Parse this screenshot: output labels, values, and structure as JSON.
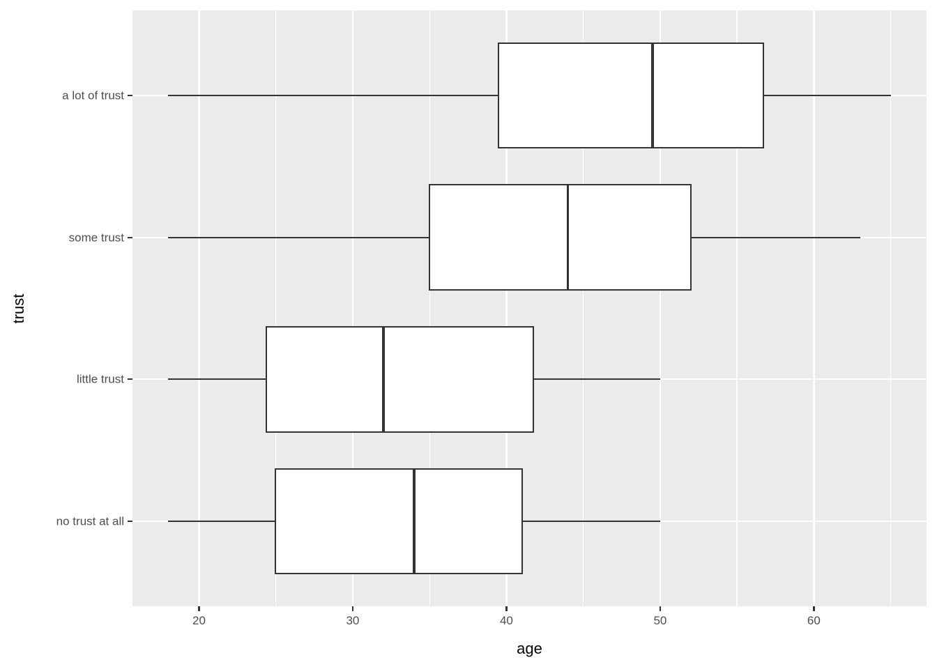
{
  "chart_data": {
    "type": "boxplot",
    "orientation": "horizontal",
    "title": "",
    "xlabel": "age",
    "ylabel": "trust",
    "x_ticks": [
      20,
      30,
      40,
      50,
      60
    ],
    "x_minor_gridlines": [
      25,
      35,
      45,
      55,
      65
    ],
    "xlim": [
      15.67,
      67.33
    ],
    "grid": true,
    "legend": false,
    "categories_top_to_bottom": [
      "a lot of trust",
      "some trust",
      "little trust",
      "no trust at all"
    ],
    "series": [
      {
        "category": "a lot of trust",
        "whisker_min": 18,
        "q1": 39.5,
        "median": 49.5,
        "q3": 56.7,
        "whisker_max": 65
      },
      {
        "category": "some trust",
        "whisker_min": 18,
        "q1": 35,
        "median": 44,
        "q3": 52,
        "whisker_max": 63
      },
      {
        "category": "little trust",
        "whisker_min": 18,
        "q1": 24.4,
        "median": 32,
        "q3": 41.75,
        "whisker_max": 50
      },
      {
        "category": "no trust at all",
        "whisker_min": 18,
        "q1": 25,
        "median": 34,
        "q3": 41,
        "whisker_max": 50
      }
    ]
  },
  "colors": {
    "panel_background": "#EBEBEB",
    "gridline": "#FFFFFF",
    "box_stroke": "#333333",
    "box_fill": "#FFFFFF",
    "tick_label": "#4D4D4D",
    "axis_title": "#000000",
    "page_background": "#FFFFFF"
  }
}
